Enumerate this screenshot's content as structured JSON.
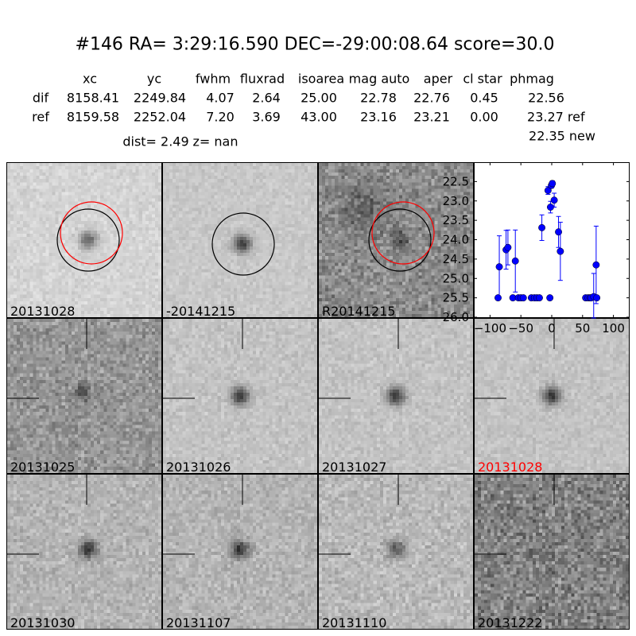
{
  "header": {
    "title": "#146   RA= 3:29:16.590 DEC=-29:00:08.64      score=30.0",
    "columns": [
      "xc",
      "yc",
      "fwhm",
      "fluxrad",
      "isoarea",
      "mag auto",
      "aper",
      "cl star",
      "phmag"
    ],
    "rows": [
      {
        "label": "dif",
        "values": [
          "8158.41",
          "2249.84",
          "4.07",
          "2.64",
          "25.00",
          "22.78",
          "22.76",
          "0.45",
          "22.56"
        ]
      },
      {
        "label": "ref",
        "values": [
          "8159.58",
          "2252.04",
          "7.20",
          "3.69",
          "43.00",
          "23.16",
          "23.21",
          "0.00",
          "23.27 ref"
        ]
      }
    ],
    "phmag_new": "22.35 new",
    "dist": "dist=  2.49",
    "z": "z=   nan"
  },
  "stamps": [
    {
      "label": "20131028",
      "label_color": "#000000",
      "circles": [
        "black",
        "red"
      ]
    },
    {
      "label": "-20141215",
      "label_color": "#000000",
      "circles": [
        "black"
      ]
    },
    {
      "label": "R20141215",
      "label_color": "#000000",
      "circles": [
        "black",
        "red"
      ]
    },
    {
      "label": "20131025",
      "label_color": "#000000",
      "crosshair": true
    },
    {
      "label": "20131026",
      "label_color": "#000000",
      "crosshair": true
    },
    {
      "label": "20131027",
      "label_color": "#000000",
      "crosshair": true
    },
    {
      "label": "20131028",
      "label_color": "#ff0000",
      "crosshair": true
    },
    {
      "label": "20131030",
      "label_color": "#000000",
      "crosshair": true
    },
    {
      "label": "20131107",
      "label_color": "#000000",
      "crosshair": true
    },
    {
      "label": "20131110",
      "label_color": "#000000",
      "crosshair": true
    },
    {
      "label": "20131222",
      "label_color": "#000000",
      "crosshair": true
    }
  ],
  "chart_data": {
    "type": "scatter",
    "marker_color": "#0000ff",
    "xlim": [
      -125,
      125
    ],
    "ylim": [
      26.0,
      22.0
    ],
    "y_inverted": true,
    "xticks": [
      -100,
      -50,
      0,
      50,
      100
    ],
    "yticks": [
      22.5,
      23.0,
      23.5,
      24.0,
      24.5,
      25.0,
      25.5,
      26.0
    ],
    "xtick_labels": [
      "−100",
      "−50",
      "0",
      "50",
      "100"
    ],
    "ytick_labels": [
      "22.5",
      "23.0",
      "23.5",
      "24.0",
      "24.5",
      "25.0",
      "25.5",
      "26.0"
    ],
    "points": [
      {
        "x": -87,
        "y": 25.5,
        "err": 0.05
      },
      {
        "x": -85,
        "y": 24.7,
        "err": 0.8
      },
      {
        "x": -74,
        "y": 24.26,
        "err": 0.5
      },
      {
        "x": -71,
        "y": 24.2,
        "err": 0.45
      },
      {
        "x": -63,
        "y": 25.5,
        "err": 0.05
      },
      {
        "x": -59,
        "y": 24.55,
        "err": 0.8
      },
      {
        "x": -54,
        "y": 25.5,
        "err": 0.05
      },
      {
        "x": -50,
        "y": 25.5,
        "err": 0.05
      },
      {
        "x": -46,
        "y": 25.5,
        "err": 0.05
      },
      {
        "x": -33,
        "y": 25.5,
        "err": 0.05
      },
      {
        "x": -28,
        "y": 25.5,
        "err": 0.05
      },
      {
        "x": -24,
        "y": 25.5,
        "err": 0.05
      },
      {
        "x": -20,
        "y": 25.5,
        "err": 0.05
      },
      {
        "x": -16,
        "y": 23.69,
        "err": 0.33
      },
      {
        "x": -6,
        "y": 22.73,
        "err": 0.1
      },
      {
        "x": -3,
        "y": 25.5,
        "err": 0.05
      },
      {
        "x": -2,
        "y": 23.16,
        "err": 0.15
      },
      {
        "x": -0.5,
        "y": 22.6,
        "err": 0.07
      },
      {
        "x": 1,
        "y": 22.55,
        "err": 0.07
      },
      {
        "x": 4,
        "y": 22.98,
        "err": 0.18
      },
      {
        "x": 11,
        "y": 23.8,
        "err": 0.4
      },
      {
        "x": 14,
        "y": 24.3,
        "err": 0.75
      },
      {
        "x": 55,
        "y": 25.5,
        "err": 0.05
      },
      {
        "x": 59,
        "y": 25.5,
        "err": 0.05
      },
      {
        "x": 62,
        "y": 25.5,
        "err": 0.05
      },
      {
        "x": 64,
        "y": 25.5,
        "err": 0.05
      },
      {
        "x": 68,
        "y": 25.47,
        "err": 0.6
      },
      {
        "x": 72,
        "y": 24.65,
        "err": 1.0
      },
      {
        "x": 73,
        "y": 25.5,
        "err": 0.05
      }
    ]
  }
}
